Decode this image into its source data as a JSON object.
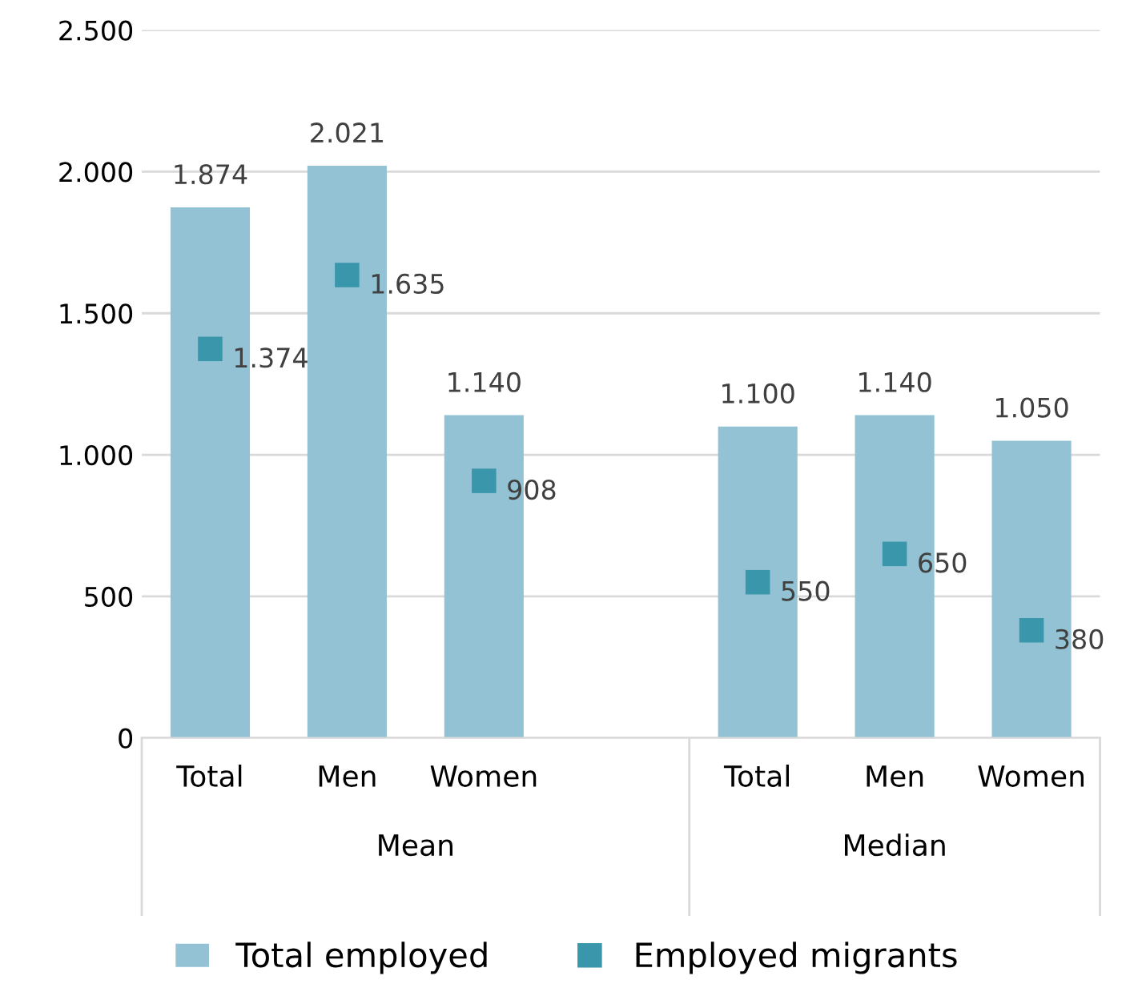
{
  "chart_data": {
    "type": "bar",
    "categories": [
      "Total",
      "Men",
      "Women",
      null,
      "Total",
      "Men",
      "Women"
    ],
    "annotations": [
      "Mean",
      "Median"
    ],
    "series": [
      {
        "name": "Total employed",
        "type": "bar",
        "color": "#92c2d4",
        "values": [
          1874,
          2021,
          1140,
          null,
          1100,
          1140,
          1050
        ],
        "value_labels": [
          "1.874",
          "2.021",
          "1.140",
          null,
          "1.100",
          "1.140",
          "1.050"
        ]
      },
      {
        "name": "Employed migrants",
        "type": "scatter",
        "color": "#3a97ab",
        "values": [
          1374,
          1635,
          908,
          null,
          550,
          650,
          380
        ],
        "value_labels": [
          "1.374",
          "1.635",
          "908",
          null,
          "550",
          "650",
          "380"
        ]
      }
    ],
    "ylim": [
      0,
      2500
    ],
    "yticks": [
      0,
      {
        "value": 500,
        "label": "500"
      },
      {
        "value": 1000,
        "label": "1.000"
      },
      {
        "value": 1500,
        "label": "1.500"
      },
      {
        "value": 2000,
        "label": "2.000"
      },
      {
        "value": 2500,
        "label": "2.500"
      }
    ],
    "grid": "y",
    "legend": "bottom",
    "marker": "square"
  }
}
